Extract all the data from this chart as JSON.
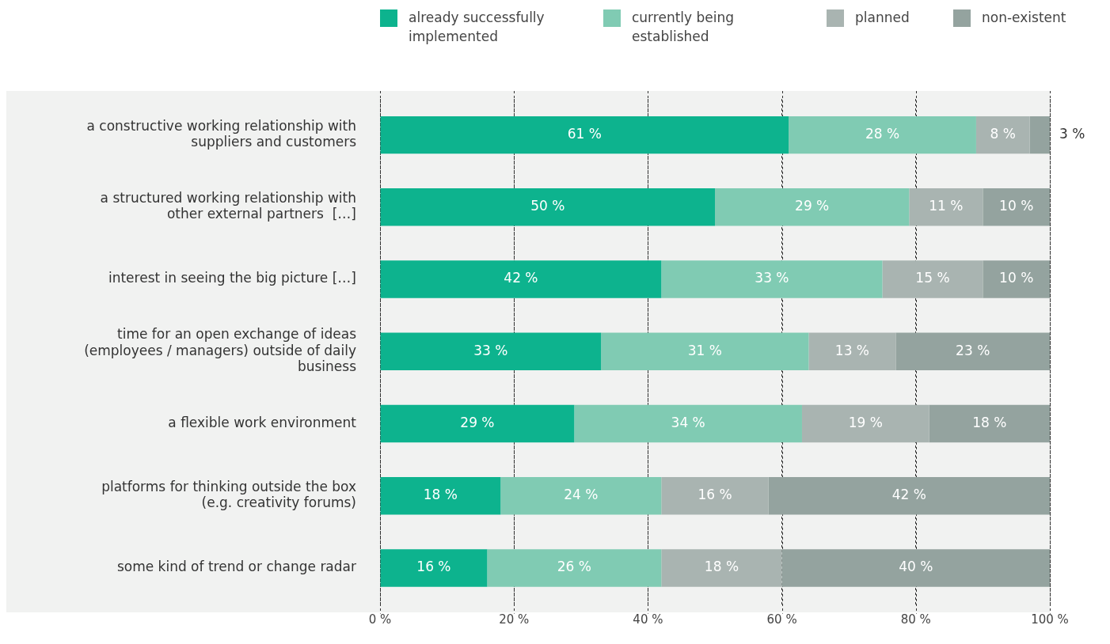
{
  "chart_data": {
    "type": "bar",
    "orientation": "horizontal",
    "stacked": true,
    "legend": "top right",
    "grid": "x",
    "categories": [
      "a constructive working relationship with suppliers and customers",
      "a structured working relationship with other external partners  […]",
      "interest in seeing the big picture […]",
      "time for an open exchange of ideas (employees / managers) outside of daily business",
      "a flexible work environment",
      "platforms for thinking outside the box (e.g. creativity forums)",
      "some kind of trend or change radar"
    ],
    "series": [
      {
        "name": "already successfully implemented",
        "color": "#0db38e",
        "values": [
          61,
          50,
          42,
          33,
          29,
          18,
          16
        ],
        "value_labels": [
          "61 %",
          "50 %",
          "42 %",
          "33 %",
          "29 %",
          "18 %",
          "16 %"
        ]
      },
      {
        "name": "currently being established",
        "color": "#80cbb3",
        "values": [
          28,
          29,
          33,
          31,
          34,
          24,
          26
        ],
        "value_labels": [
          "28 %",
          "29 %",
          "33 %",
          "31 %",
          "34 %",
          "24 %",
          "26 %"
        ]
      },
      {
        "name": "planned",
        "color": "#a9b4b1",
        "values": [
          8,
          11,
          15,
          13,
          19,
          16,
          18
        ],
        "value_labels": [
          "8 %",
          "11 %",
          "15 %",
          "13 %",
          "19 %",
          "16 %",
          "18 %"
        ]
      },
      {
        "name": "non-existent",
        "color": "#94a39f",
        "values": [
          3,
          10,
          10,
          23,
          18,
          42,
          40
        ],
        "value_labels": [
          "3 %",
          "10 %",
          "10 %",
          "23 %",
          "18 %",
          "42 %",
          "40 %"
        ]
      }
    ],
    "xlim": [
      0,
      100
    ],
    "xticks": [
      {
        "value": 0,
        "label": "0 %"
      },
      {
        "value": 20,
        "label": "20 %"
      },
      {
        "value": 40,
        "label": "40 %"
      },
      {
        "value": 60,
        "label": "60 %"
      },
      {
        "value": 80,
        "label": "80 %"
      },
      {
        "value": 100,
        "label": "100 %"
      }
    ]
  }
}
